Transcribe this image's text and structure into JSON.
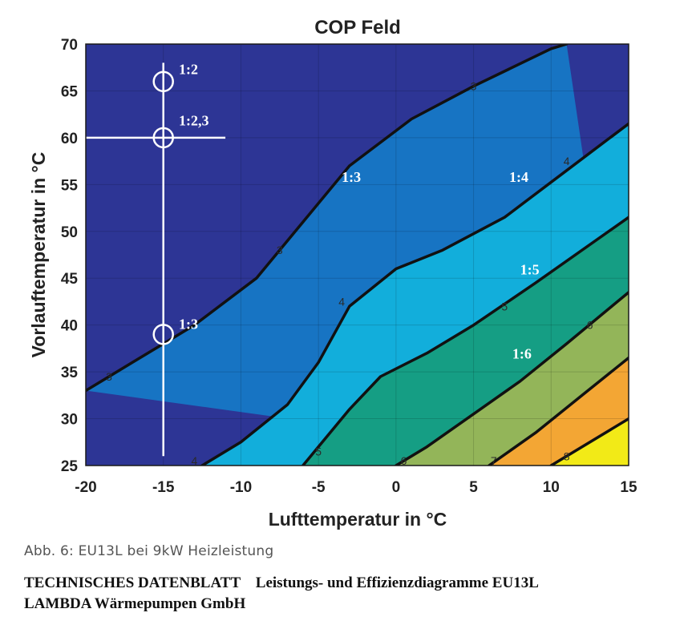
{
  "chart_data": {
    "type": "contour",
    "title": "COP Feld",
    "xlabel": "Lufttemperatur in °C",
    "ylabel": "Vorlauftemperatur in °C",
    "xlim": [
      -20,
      15
    ],
    "ylim": [
      25,
      70
    ],
    "xticks": [
      "-20",
      "-15",
      "-10",
      "-5",
      "0",
      "5",
      "10",
      "15"
    ],
    "yticks": [
      "25",
      "30",
      "35",
      "40",
      "45",
      "50",
      "55",
      "60",
      "65",
      "70"
    ],
    "grid": true,
    "colorbands": [
      "#2d3595",
      "#1774c3",
      "#12aedb",
      "#159e84",
      "#93b559",
      "#f3a634",
      "#f2ea17"
    ],
    "contours": [
      {
        "level": "3",
        "points": [
          [
            -20,
            33
          ],
          [
            -17,
            36
          ],
          [
            -13,
            40
          ],
          [
            -9,
            45
          ],
          [
            -6,
            51
          ],
          [
            -3,
            57
          ],
          [
            1,
            62
          ],
          [
            5,
            65.5
          ],
          [
            10,
            69.5
          ],
          [
            11,
            70
          ]
        ]
      },
      {
        "level": "4",
        "points": [
          [
            -12.5,
            25
          ],
          [
            -10,
            27.5
          ],
          [
            -7,
            31.5
          ],
          [
            -5,
            36
          ],
          [
            -3,
            42
          ],
          [
            0,
            46
          ],
          [
            3,
            48
          ],
          [
            7,
            51.5
          ],
          [
            11,
            56.5
          ],
          [
            15,
            61.5
          ]
        ]
      },
      {
        "level": "5",
        "points": [
          [
            -6,
            25
          ],
          [
            -5,
            27
          ],
          [
            -3,
            31
          ],
          [
            -1,
            34.5
          ],
          [
            2,
            37
          ],
          [
            5,
            40
          ],
          [
            9,
            44.5
          ],
          [
            15,
            51.5
          ]
        ]
      },
      {
        "level": "6",
        "points": [
          [
            0,
            25
          ],
          [
            2,
            27
          ],
          [
            5,
            30.5
          ],
          [
            8,
            34
          ],
          [
            11,
            38
          ],
          [
            15,
            43.5
          ]
        ]
      },
      {
        "level": "7",
        "points": [
          [
            6,
            25
          ],
          [
            9,
            28.5
          ],
          [
            12,
            32.5
          ],
          [
            15,
            36.5
          ]
        ]
      },
      {
        "level": "8",
        "points": [
          [
            10,
            25
          ],
          [
            12,
            27
          ],
          [
            15,
            30
          ]
        ]
      }
    ],
    "contour_labels": [
      {
        "text": "3",
        "x": -18.5,
        "y": 34.5
      },
      {
        "text": "3",
        "x": -7.5,
        "y": 48
      },
      {
        "text": "3",
        "x": 5,
        "y": 65.5
      },
      {
        "text": "4",
        "x": -13,
        "y": 25.5
      },
      {
        "text": "4",
        "x": -3.5,
        "y": 42.5
      },
      {
        "text": "4",
        "x": 11,
        "y": 57.5
      },
      {
        "text": "5",
        "x": -5,
        "y": 26.5
      },
      {
        "text": "5",
        "x": 7,
        "y": 42
      },
      {
        "text": "6",
        "x": 0.5,
        "y": 25.5
      },
      {
        "text": "6",
        "x": 12.5,
        "y": 40
      },
      {
        "text": "7",
        "x": 6.3,
        "y": 25.5
      },
      {
        "text": "8",
        "x": 11,
        "y": 26
      }
    ],
    "annotations": [
      {
        "text": "1:2",
        "x": -14,
        "y": 66.8
      },
      {
        "text": "1:2,3",
        "x": -14,
        "y": 61.3
      },
      {
        "text": "1:3",
        "x": -14,
        "y": 39.6
      },
      {
        "text": "1:3",
        "x": -3.5,
        "y": 55.3
      },
      {
        "text": "1:4",
        "x": 7.3,
        "y": 55.3
      },
      {
        "text": "1:5",
        "x": 8,
        "y": 45.4
      },
      {
        "text": "1:6",
        "x": 7.5,
        "y": 36.4
      }
    ],
    "markers": [
      {
        "x": -15,
        "y": 66
      },
      {
        "x": -15,
        "y": 60
      },
      {
        "x": -15,
        "y": 39
      }
    ],
    "guide_lines": [
      {
        "orientation": "vertical",
        "x": -15,
        "from": 26,
        "to": 68
      },
      {
        "orientation": "horizontal",
        "y": 60,
        "from": -20,
        "to": -11
      }
    ]
  },
  "caption": "Abb. 6:    EU13L bei 9kW Heizleistung",
  "footer": {
    "line1": "TECHNISCHES DATENBLATT    Leistungs- und Effizienzdiagramme EU13L",
    "line2": "LAMBDA Wärmepumpen GmbH"
  }
}
